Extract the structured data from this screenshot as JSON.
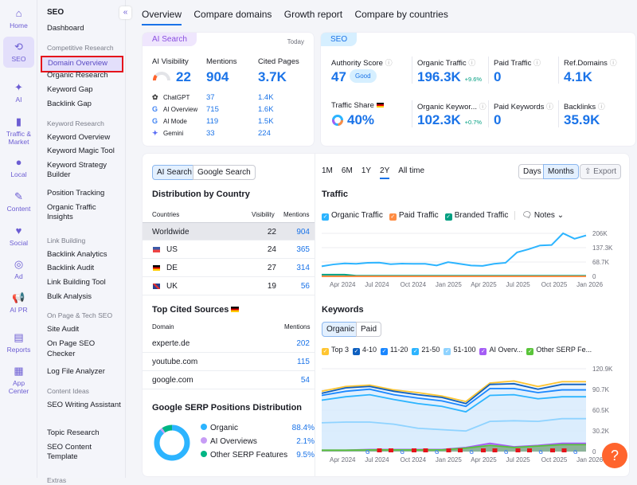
{
  "rail": [
    {
      "label": "Home",
      "icon": "home-icon",
      "glyph": "⌂"
    },
    {
      "label": "SEO",
      "icon": "seo-icon",
      "glyph": "⟲",
      "active": true
    },
    {
      "label": "AI",
      "icon": "ai-sparkle-icon",
      "glyph": "✦"
    },
    {
      "label": "Traffic & Market",
      "icon": "bar-chart-icon",
      "glyph": "▮"
    },
    {
      "label": "Local",
      "icon": "location-pin-icon",
      "glyph": "●"
    },
    {
      "label": "Content",
      "icon": "pencil-icon",
      "glyph": "✎"
    },
    {
      "label": "Social",
      "icon": "heart-chat-icon",
      "glyph": "♥"
    },
    {
      "label": "Ad",
      "icon": "cursor-target-icon",
      "glyph": "◎"
    },
    {
      "label": "AI PR",
      "icon": "megaphone-icon",
      "glyph": "📢"
    },
    {
      "label": "Reports",
      "icon": "report-icon",
      "glyph": "▤"
    },
    {
      "label": "App Center",
      "icon": "apps-grid-icon",
      "glyph": "▦"
    }
  ],
  "nav": {
    "title": "SEO",
    "items": [
      {
        "t": "Dashboard"
      },
      {
        "t": "Competitive Research",
        "sec": true
      },
      {
        "t": "Domain Overview",
        "active": true
      },
      {
        "t": "Organic Research"
      },
      {
        "t": "Keyword Gap"
      },
      {
        "t": "Backlink Gap"
      },
      {
        "t": "Keyword Research",
        "sec": true
      },
      {
        "t": "Keyword Overview"
      },
      {
        "t": "Keyword Magic Tool"
      },
      {
        "t": "Keyword Strategy Builder"
      },
      {
        "t": "Position Tracking"
      },
      {
        "t": "Organic Traffic Insights"
      },
      {
        "t": "Link Building",
        "sec": true
      },
      {
        "t": "Backlink Analytics"
      },
      {
        "t": "Backlink Audit"
      },
      {
        "t": "Link Building Tool"
      },
      {
        "t": "Bulk Analysis"
      },
      {
        "t": "On Page & Tech SEO",
        "sec": true
      },
      {
        "t": "Site Audit"
      },
      {
        "t": "On Page SEO Checker"
      },
      {
        "t": "Log File Analyzer"
      },
      {
        "t": "Content Ideas",
        "sec": true
      },
      {
        "t": "SEO Writing Assistant"
      },
      {
        "t": "Topic Research"
      },
      {
        "t": "SEO Content Template"
      },
      {
        "t": "Extras",
        "sec": true
      }
    ]
  },
  "tabs": [
    "Overview",
    "Compare domains",
    "Growth report",
    "Compare by countries"
  ],
  "ai": {
    "pill": "AI Search",
    "date": "Today",
    "vis_label": "AI Visibility",
    "vis": "22",
    "men_label": "Mentions",
    "men": "904",
    "cited_label": "Cited Pages",
    "cited": "3.7K",
    "rows": [
      {
        "name": "ChatGPT",
        "icon": "chatgpt-icon",
        "m": "37",
        "c": "1.4K"
      },
      {
        "name": "AI Overview",
        "icon": "google-icon",
        "m": "715",
        "c": "1.6K"
      },
      {
        "name": "AI Mode",
        "icon": "google-icon",
        "m": "119",
        "c": "1.5K"
      },
      {
        "name": "Gemini",
        "icon": "gemini-icon",
        "m": "33",
        "c": "224"
      }
    ]
  },
  "seo": {
    "pill": "SEO",
    "as_label": "Authority Score",
    "as": "47",
    "as_badge": "Good",
    "ot_label": "Organic Traffic",
    "ot": "196.3K",
    "ot_delta": "+9.6%",
    "pt_label": "Paid Traffic",
    "pt": "0",
    "rd_label": "Ref.Domains",
    "rd": "4.1K",
    "ts_label": "Traffic Share",
    "ts": "40%",
    "ok_label": "Organic Keywor...",
    "ok": "102.3K",
    "ok_delta": "+0.7%",
    "pk_label": "Paid Keywords",
    "pk": "0",
    "bl_label": "Backlinks",
    "bl": "35.9K"
  },
  "left": {
    "toggle": [
      "AI Search",
      "Google Search"
    ],
    "dist_title": "Distribution by Country",
    "cols": [
      "Countries",
      "Visibility",
      "Mentions"
    ],
    "countries": [
      {
        "n": "Worldwide",
        "v": "22",
        "m": "904"
      },
      {
        "n": "US",
        "v": "24",
        "m": "365"
      },
      {
        "n": "DE",
        "v": "27",
        "m": "314"
      },
      {
        "n": "UK",
        "v": "19",
        "m": "56"
      }
    ],
    "cited_title": "Top Cited Sources",
    "cited_cols": [
      "Domain",
      "Mentions"
    ],
    "sources": [
      {
        "d": "experte.de",
        "m": "202"
      },
      {
        "d": "youtube.com",
        "m": "115"
      },
      {
        "d": "google.com",
        "m": "54"
      }
    ],
    "serp_title": "Google SERP Positions Distribution",
    "serp": [
      {
        "n": "Organic",
        "v": "88.4%",
        "pct": 88.4,
        "color": "#2cb4ff"
      },
      {
        "n": "AI Overviews",
        "v": "2.1%",
        "pct": 2.1,
        "color": "#c79cf5"
      },
      {
        "n": "Other SERP Features",
        "v": "9.5%",
        "pct": 9.5,
        "color": "#00b584"
      }
    ]
  },
  "ranges": [
    "1M",
    "6M",
    "1Y",
    "2Y",
    "All time"
  ],
  "range_selected": "2Y",
  "gran": [
    "Days",
    "Months"
  ],
  "export": "Export",
  "chart_data": [
    {
      "type": "line",
      "title": "Traffic",
      "legend": [
        {
          "n": "Organic Traffic",
          "color": "#2cb4ff"
        },
        {
          "n": "Paid Traffic",
          "color": "#ff8c43"
        },
        {
          "n": "Branded Traffic",
          "color": "#009f81"
        }
      ],
      "notes": "Notes",
      "x_ticks": [
        "Apr 2024",
        "Jul 2024",
        "Oct 2024",
        "Jan 2025",
        "Apr 2025",
        "Jul 2025",
        "Oct 2025",
        "Jan 2026"
      ],
      "y_ticks": [
        "206K",
        "137.3K",
        "68.7K",
        "0"
      ],
      "ylim": [
        0,
        206000
      ],
      "x": [
        "Feb 2024",
        "Mar 2024",
        "Apr 2024",
        "May 2024",
        "Jun 2024",
        "Jul 2024",
        "Aug 2024",
        "Sep 2024",
        "Oct 2024",
        "Nov 2024",
        "Dec 2024",
        "Jan 2025",
        "Feb 2025",
        "Mar 2025",
        "Apr 2025",
        "May 2025",
        "Jun 2025",
        "Jul 2025",
        "Aug 2025",
        "Sep 2025",
        "Oct 2025",
        "Nov 2025",
        "Dec 2025",
        "Jan 2026"
      ],
      "series": [
        {
          "name": "Organic Traffic",
          "values": [
            48000,
            57000,
            62000,
            60000,
            65000,
            66000,
            58000,
            61000,
            60000,
            60000,
            52000,
            68000,
            60000,
            52000,
            50000,
            60000,
            65000,
            115000,
            130000,
            148000,
            150000,
            206000,
            180000,
            196000
          ]
        },
        {
          "name": "Branded Traffic",
          "values": [
            8000,
            8000,
            8000,
            3000,
            3000,
            3000,
            3000,
            3000,
            3000,
            3000,
            3000,
            3000,
            3000,
            3000,
            3000,
            3000,
            3000,
            3000,
            3000,
            3000,
            3000,
            3000,
            3000,
            3000
          ]
        },
        {
          "name": "Paid Traffic",
          "values": [
            0,
            0,
            0,
            0,
            0,
            0,
            0,
            0,
            0,
            0,
            0,
            0,
            0,
            0,
            0,
            0,
            0,
            0,
            0,
            0,
            0,
            0,
            0,
            0
          ]
        }
      ]
    },
    {
      "type": "area",
      "title": "Keywords",
      "toggle": [
        "Organic",
        "Paid"
      ],
      "legend": [
        {
          "n": "Top 3",
          "color": "#ffc531"
        },
        {
          "n": "4-10",
          "color": "#0e5fbf"
        },
        {
          "n": "11-20",
          "color": "#1a87ff"
        },
        {
          "n": "21-50",
          "color": "#2cb4ff"
        },
        {
          "n": "51-100",
          "color": "#8fd3ff"
        },
        {
          "n": "AI Overv...",
          "color": "#a45df5"
        },
        {
          "n": "Other SERP Fe...",
          "color": "#5ac43a"
        }
      ],
      "x_ticks": [
        "Apr 2024",
        "Jul 2024",
        "Oct 2024",
        "Jan 2025",
        "Apr 2025",
        "Jul 2025",
        "Oct 2025",
        "Jan 2026"
      ],
      "y_ticks": [
        "120.9K",
        "90.7K",
        "60.5K",
        "30.2K",
        "0"
      ],
      "ylim": [
        0,
        120900
      ],
      "series": [
        {
          "name": "Top 3",
          "values": [
            88000,
            95000,
            97000,
            90000,
            86000,
            81000,
            73000,
            100000,
            103000,
            95000,
            102000,
            102000
          ]
        },
        {
          "name": "4-10",
          "values": [
            85000,
            93000,
            95000,
            88000,
            83000,
            79000,
            70000,
            98000,
            99000,
            91000,
            98000,
            98000
          ]
        },
        {
          "name": "11-20",
          "values": [
            82000,
            88000,
            91000,
            83000,
            78000,
            74000,
            66000,
            92000,
            92000,
            86000,
            90000,
            90000
          ]
        },
        {
          "name": "21-50",
          "values": [
            75000,
            80000,
            83000,
            76000,
            70000,
            66000,
            58000,
            82000,
            83000,
            77000,
            80000,
            80000
          ]
        },
        {
          "name": "51-100",
          "values": [
            42000,
            43000,
            43000,
            40000,
            34000,
            32000,
            30000,
            44000,
            45000,
            44000,
            48000,
            48000
          ]
        },
        {
          "name": "AI Overv...",
          "values": [
            2000,
            2000,
            3000,
            3000,
            3000,
            3000,
            6000,
            12000,
            7000,
            9000,
            12000,
            12000
          ]
        },
        {
          "name": "Other SERP Fe...",
          "values": [
            2000,
            2000,
            2500,
            2500,
            2500,
            2500,
            5000,
            9000,
            6000,
            8000,
            10000,
            10000
          ]
        }
      ]
    }
  ],
  "help": "?"
}
